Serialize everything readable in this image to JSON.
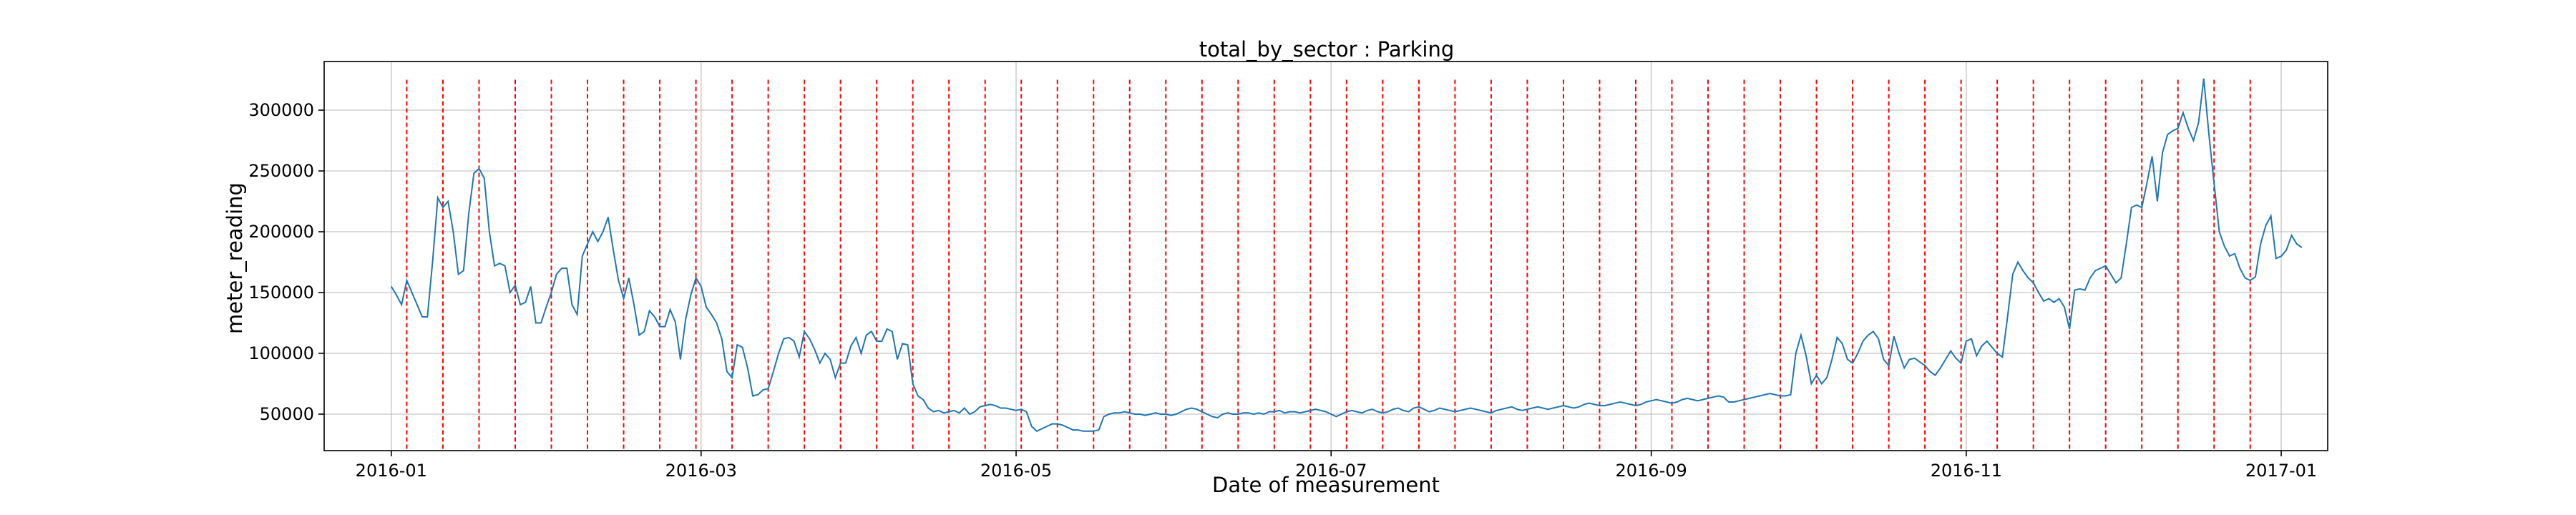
{
  "chart_data": {
    "type": "line",
    "title": "total_by_sector : Parking",
    "xlabel": "Date of measurement",
    "ylabel": "meter_reading",
    "xlim": [
      "2015-12-19",
      "2017-01-10"
    ],
    "ylim": [
      20000,
      340000
    ],
    "x_ticks": [
      "2016-01",
      "2016-03",
      "2016-05",
      "2016-07",
      "2016-09",
      "2016-11",
      "2017-01"
    ],
    "y_ticks": [
      50000,
      100000,
      150000,
      200000,
      250000,
      300000
    ],
    "y_tick_labels": [
      "50000",
      "100000",
      "150000",
      "200000",
      "250000",
      "300000"
    ],
    "grid": true,
    "colors": {
      "series": "#1f77b4",
      "markers": "#ff0000"
    },
    "marker_lines": {
      "style": "dashed",
      "color": "#ff0000",
      "dates": [
        "2016-01-04",
        "2016-01-11",
        "2016-01-18",
        "2016-01-25",
        "2016-02-01",
        "2016-02-08",
        "2016-02-15",
        "2016-02-22",
        "2016-02-29",
        "2016-03-07",
        "2016-03-14",
        "2016-03-21",
        "2016-03-28",
        "2016-04-04",
        "2016-04-11",
        "2016-04-18",
        "2016-04-25",
        "2016-05-02",
        "2016-05-09",
        "2016-05-16",
        "2016-05-23",
        "2016-05-30",
        "2016-06-06",
        "2016-06-13",
        "2016-06-20",
        "2016-06-27",
        "2016-07-04",
        "2016-07-11",
        "2016-07-18",
        "2016-07-25",
        "2016-08-01",
        "2016-08-08",
        "2016-08-15",
        "2016-08-22",
        "2016-08-29",
        "2016-09-05",
        "2016-09-12",
        "2016-09-19",
        "2016-09-26",
        "2016-10-03",
        "2016-10-10",
        "2016-10-17",
        "2016-10-24",
        "2016-10-31",
        "2016-11-07",
        "2016-11-14",
        "2016-11-21",
        "2016-11-28",
        "2016-12-05",
        "2016-12-12",
        "2016-12-19",
        "2016-12-26"
      ]
    },
    "series": [
      {
        "start": "2016-01-01",
        "step_days": 1,
        "values": [
          155000,
          148000,
          140000,
          160000,
          150000,
          140000,
          130000,
          130000,
          175000,
          228000,
          220000,
          225000,
          200000,
          165000,
          168000,
          215000,
          248000,
          252000,
          244000,
          200000,
          172000,
          174000,
          172000,
          150000,
          156000,
          140000,
          142000,
          155000,
          125000,
          125000,
          138000,
          150000,
          165000,
          170000,
          170000,
          140000,
          132000,
          180000,
          190000,
          200000,
          192000,
          200000,
          212000,
          185000,
          160000,
          145000,
          162000,
          140000,
          115000,
          118000,
          135000,
          130000,
          122000,
          122000,
          136000,
          126000,
          95000,
          128000,
          148000,
          162000,
          155000,
          138000,
          132000,
          125000,
          112000,
          85000,
          80000,
          107000,
          105000,
          88000,
          65000,
          66000,
          70000,
          71000,
          85000,
          100000,
          112000,
          113000,
          110000,
          97000,
          118000,
          112000,
          103000,
          92000,
          100000,
          95000,
          80000,
          92000,
          92000,
          106000,
          113000,
          100000,
          115000,
          118000,
          110000,
          110000,
          120000,
          118000,
          95000,
          108000,
          107000,
          75000,
          65000,
          62000,
          55000,
          52000,
          53000,
          51000,
          52000,
          53000,
          51000,
          55000,
          50000,
          52000,
          56000,
          57000,
          58000,
          57000,
          55000,
          55000,
          54000,
          53000,
          54000,
          52000,
          40000,
          36000,
          38000,
          40000,
          42000,
          42000,
          41000,
          39000,
          37000,
          37000,
          36000,
          36000,
          36000,
          37000,
          48000,
          50000,
          51000,
          51000,
          52000,
          51000,
          50000,
          50000,
          49000,
          50000,
          51000,
          50000,
          50000,
          49000,
          50000,
          52000,
          54000,
          55000,
          54000,
          52000,
          50000,
          48000,
          47000,
          50000,
          51000,
          50000,
          50000,
          51000,
          51000,
          50000,
          51000,
          50000,
          52000,
          52000,
          53000,
          51000,
          52000,
          52000,
          51000,
          52000,
          53000,
          54000,
          53000,
          52000,
          50000,
          48000,
          50000,
          52000,
          53000,
          52000,
          51000,
          53000,
          54000,
          52000,
          51000,
          52000,
          54000,
          55000,
          53000,
          52000,
          55000,
          56000,
          54000,
          52000,
          53000,
          55000,
          54000,
          53000,
          52000,
          53000,
          54000,
          55000,
          54000,
          53000,
          52000,
          51000,
          53000,
          54000,
          55000,
          56000,
          54000,
          53000,
          54000,
          55000,
          56000,
          55000,
          54000,
          55000,
          56000,
          57000,
          56000,
          55000,
          56000,
          58000,
          59000,
          58000,
          57000,
          57000,
          58000,
          59000,
          60000,
          59000,
          58000,
          57000,
          58000,
          60000,
          61000,
          62000,
          61000,
          60000,
          59000,
          60000,
          62000,
          63000,
          62000,
          61000,
          62000,
          63000,
          64000,
          65000,
          64000,
          60000,
          60000,
          61000,
          62000,
          63000,
          64000,
          65000,
          66000,
          67000,
          66000,
          65000,
          65000,
          66000,
          100000,
          115000,
          98000,
          75000,
          82000,
          75000,
          80000,
          95000,
          113000,
          108000,
          95000,
          92000,
          100000,
          110000,
          115000,
          118000,
          112000,
          95000,
          90000,
          114000,
          100000,
          88000,
          95000,
          96000,
          93000,
          90000,
          85000,
          82000,
          88000,
          95000,
          102000,
          96000,
          92000,
          110000,
          112000,
          98000,
          106000,
          110000,
          105000,
          100000,
          97000,
          130000,
          165000,
          175000,
          168000,
          162000,
          158000,
          150000,
          143000,
          145000,
          142000,
          145000,
          138000,
          120000,
          152000,
          153000,
          152000,
          162000,
          168000,
          170000,
          172000,
          165000,
          158000,
          162000,
          190000,
          220000,
          222000,
          220000,
          240000,
          262000,
          225000,
          265000,
          280000,
          283000,
          285000,
          298000,
          285000,
          275000,
          290000,
          326000,
          280000,
          240000,
          200000,
          188000,
          180000,
          182000,
          170000,
          162000,
          160000,
          163000,
          190000,
          205000,
          213000,
          178000,
          180000,
          185000,
          197000,
          190000,
          187000
        ]
      }
    ]
  }
}
